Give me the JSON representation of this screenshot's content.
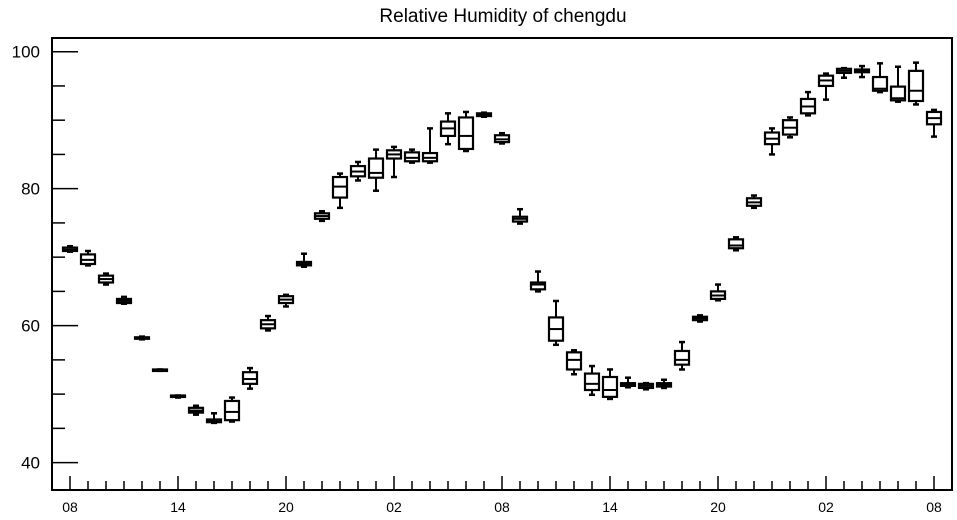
{
  "chart_data": {
    "type": "box",
    "title": "Relative Humidity of chengdu",
    "xlabel": "",
    "ylabel": "",
    "ylim": [
      36,
      102
    ],
    "y_ticks": [
      40,
      60,
      80,
      100
    ],
    "x_tick_labels": [
      "08",
      "14",
      "20",
      "02",
      "08",
      "14",
      "20",
      "02",
      "08"
    ],
    "hours_per_x_label": 6,
    "grid": false,
    "boxes": [
      {
        "hour": 0,
        "min": 70.8,
        "q1": 70.9,
        "median": 71.1,
        "q3": 71.4,
        "max": 71.6
      },
      {
        "hour": 1,
        "min": 68.8,
        "q1": 69.0,
        "median": 69.6,
        "q3": 70.4,
        "max": 70.9
      },
      {
        "hour": 2,
        "min": 66.0,
        "q1": 66.3,
        "median": 66.8,
        "q3": 67.3,
        "max": 67.6
      },
      {
        "hour": 3,
        "min": 63.2,
        "q1": 63.3,
        "median": 63.6,
        "q3": 63.9,
        "max": 64.2
      },
      {
        "hour": 4,
        "min": 58.0,
        "q1": 58.1,
        "median": 58.2,
        "q3": 58.3,
        "max": 58.4
      },
      {
        "hour": 5,
        "min": 53.4,
        "q1": 53.4,
        "median": 53.5,
        "q3": 53.6,
        "max": 53.6
      },
      {
        "hour": 6,
        "min": 49.5,
        "q1": 49.6,
        "median": 49.7,
        "q3": 49.8,
        "max": 49.8
      },
      {
        "hour": 7,
        "min": 47.0,
        "q1": 47.3,
        "median": 47.6,
        "q3": 48.0,
        "max": 48.3
      },
      {
        "hour": 8,
        "min": 45.8,
        "q1": 45.9,
        "median": 46.1,
        "q3": 46.3,
        "max": 47.2
      },
      {
        "hour": 9,
        "min": 46.0,
        "q1": 46.2,
        "median": 47.4,
        "q3": 49.0,
        "max": 49.5
      },
      {
        "hour": 10,
        "min": 50.8,
        "q1": 51.5,
        "median": 52.2,
        "q3": 53.2,
        "max": 53.8
      },
      {
        "hour": 11,
        "min": 59.3,
        "q1": 59.6,
        "median": 60.2,
        "q3": 60.8,
        "max": 61.4
      },
      {
        "hour": 12,
        "min": 62.8,
        "q1": 63.3,
        "median": 63.8,
        "q3": 64.3,
        "max": 64.5
      },
      {
        "hour": 13,
        "min": 68.6,
        "q1": 68.8,
        "median": 69.0,
        "q3": 69.3,
        "max": 70.5
      },
      {
        "hour": 14,
        "min": 75.3,
        "q1": 75.6,
        "median": 76.0,
        "q3": 76.4,
        "max": 76.7
      },
      {
        "hour": 15,
        "min": 77.2,
        "q1": 78.7,
        "median": 80.3,
        "q3": 81.7,
        "max": 82.2
      },
      {
        "hour": 16,
        "min": 81.2,
        "q1": 81.8,
        "median": 82.5,
        "q3": 83.3,
        "max": 83.9
      },
      {
        "hour": 17,
        "min": 79.7,
        "q1": 81.6,
        "median": 82.3,
        "q3": 84.4,
        "max": 85.7
      },
      {
        "hour": 18,
        "min": 81.7,
        "q1": 84.4,
        "median": 85.0,
        "q3": 85.6,
        "max": 86.1
      },
      {
        "hour": 19,
        "min": 83.8,
        "q1": 84.0,
        "median": 84.5,
        "q3": 85.3,
        "max": 85.7
      },
      {
        "hour": 20,
        "min": 83.8,
        "q1": 84.0,
        "median": 84.5,
        "q3": 85.2,
        "max": 88.8
      },
      {
        "hour": 21,
        "min": 86.5,
        "q1": 87.7,
        "median": 88.8,
        "q3": 89.8,
        "max": 91.0
      },
      {
        "hour": 22,
        "min": 85.5,
        "q1": 85.8,
        "median": 87.7,
        "q3": 90.4,
        "max": 91.2
      },
      {
        "hour": 23,
        "min": 90.5,
        "q1": 90.6,
        "median": 90.8,
        "q3": 91.0,
        "max": 91.1
      },
      {
        "hour": 24,
        "min": 86.6,
        "q1": 86.8,
        "median": 87.2,
        "q3": 87.8,
        "max": 88.1
      },
      {
        "hour": 25,
        "min": 74.9,
        "q1": 75.2,
        "median": 75.6,
        "q3": 75.9,
        "max": 77.0
      },
      {
        "hour": 26,
        "min": 65.0,
        "q1": 65.3,
        "median": 66.0,
        "q3": 66.3,
        "max": 67.9
      },
      {
        "hour": 27,
        "min": 57.2,
        "q1": 57.8,
        "median": 59.5,
        "q3": 61.2,
        "max": 63.6
      },
      {
        "hour": 28,
        "min": 52.9,
        "q1": 53.6,
        "median": 55.0,
        "q3": 56.1,
        "max": 56.4
      },
      {
        "hour": 29,
        "min": 49.9,
        "q1": 50.6,
        "median": 51.5,
        "q3": 53.0,
        "max": 54.1
      },
      {
        "hour": 30,
        "min": 49.3,
        "q1": 49.6,
        "median": 50.6,
        "q3": 52.5,
        "max": 53.6
      },
      {
        "hour": 31,
        "min": 51.0,
        "q1": 51.2,
        "median": 51.4,
        "q3": 51.6,
        "max": 52.4
      },
      {
        "hour": 32,
        "min": 50.7,
        "q1": 50.9,
        "median": 51.2,
        "q3": 51.5,
        "max": 51.6
      },
      {
        "hour": 33,
        "min": 50.9,
        "q1": 51.1,
        "median": 51.4,
        "q3": 51.6,
        "max": 52.1
      },
      {
        "hour": 34,
        "min": 53.6,
        "q1": 54.3,
        "median": 55.0,
        "q3": 56.3,
        "max": 57.6
      },
      {
        "hour": 35,
        "min": 60.6,
        "q1": 60.8,
        "median": 61.1,
        "q3": 61.3,
        "max": 61.5
      },
      {
        "hour": 36,
        "min": 63.7,
        "q1": 63.9,
        "median": 64.4,
        "q3": 65.0,
        "max": 66.0
      },
      {
        "hour": 37,
        "min": 71.0,
        "q1": 71.3,
        "median": 71.7,
        "q3": 72.6,
        "max": 72.9
      },
      {
        "hour": 38,
        "min": 77.2,
        "q1": 77.5,
        "median": 78.0,
        "q3": 78.6,
        "max": 79.0
      },
      {
        "hour": 39,
        "min": 85.0,
        "q1": 86.5,
        "median": 87.3,
        "q3": 88.2,
        "max": 88.8
      },
      {
        "hour": 40,
        "min": 87.5,
        "q1": 87.9,
        "median": 88.9,
        "q3": 90.0,
        "max": 90.4
      },
      {
        "hour": 41,
        "min": 90.7,
        "q1": 91.0,
        "median": 92.0,
        "q3": 93.1,
        "max": 94.1
      },
      {
        "hour": 42,
        "min": 93.0,
        "q1": 95.0,
        "median": 95.8,
        "q3": 96.5,
        "max": 96.8
      },
      {
        "hour": 43,
        "min": 96.2,
        "q1": 96.9,
        "median": 97.2,
        "q3": 97.5,
        "max": 97.6
      },
      {
        "hour": 44,
        "min": 96.3,
        "q1": 97.0,
        "median": 97.2,
        "q3": 97.4,
        "max": 97.9
      },
      {
        "hour": 45,
        "min": 94.1,
        "q1": 94.3,
        "median": 94.6,
        "q3": 96.3,
        "max": 98.3
      },
      {
        "hour": 46,
        "min": 92.7,
        "q1": 92.9,
        "median": 93.2,
        "q3": 94.9,
        "max": 97.8
      },
      {
        "hour": 47,
        "min": 92.3,
        "q1": 92.8,
        "median": 94.3,
        "q3": 97.2,
        "max": 98.4
      },
      {
        "hour": 48,
        "min": 87.6,
        "q1": 89.4,
        "median": 90.3,
        "q3": 91.2,
        "max": 91.5
      }
    ]
  }
}
